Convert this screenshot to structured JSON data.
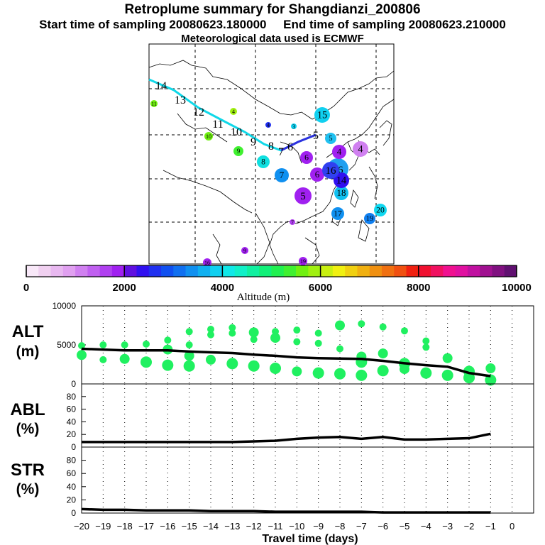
{
  "header": {
    "title": "Retroplume summary for Shangdianzi_200806",
    "sampling": "Start time of sampling 20080623.180000     End time of sampling 20080623.210000",
    "met": "Meteorological data used is ECMWF"
  },
  "colorbar": {
    "ticks": [
      "0",
      "2000",
      "4000",
      "6000",
      "8000",
      "10000"
    ],
    "label": "Altitude (m)",
    "colors": [
      "#f8e8f8",
      "#f0d0f0",
      "#e8b8f0",
      "#e0a0f0",
      "#d080f0",
      "#c060f0",
      "#b040f0",
      "#a020f0",
      "#6010e0",
      "#3010f0",
      "#2030f0",
      "#1050f0",
      "#1070f0",
      "#1090f0",
      "#10b0f0",
      "#10d0f0",
      "#10e8e8",
      "#10f0c8",
      "#10f0a0",
      "#10f078",
      "#20f050",
      "#40f030",
      "#70f010",
      "#a0f010",
      "#c8f010",
      "#f0f010",
      "#f0d010",
      "#f0b010",
      "#f09010",
      "#f07010",
      "#f05010",
      "#f02010",
      "#f01030",
      "#f01060",
      "#f01090",
      "#e010a0",
      "#c010a0",
      "#a01090",
      "#801080",
      "#601070"
    ]
  },
  "map": {
    "path": [
      {
        "label": "14",
        "color": "#10d8e8"
      },
      {
        "label": "13",
        "color": "#10d8e8"
      },
      {
        "label": "12",
        "color": "#10d8e8"
      },
      {
        "label": "11",
        "color": "#10d8e8"
      },
      {
        "label": "10",
        "color": "#10d8e8"
      },
      {
        "label": "9",
        "color": "#10d8e8"
      },
      {
        "label": "8",
        "color": "#10d8e8"
      },
      {
        "label": "7",
        "color": "#3040f0"
      },
      {
        "label": "6",
        "color": "#3040f0"
      },
      {
        "label": "5",
        "color": "#3040f0"
      }
    ],
    "clusters": [
      {
        "label": "15",
        "color": "#10d0f0"
      },
      {
        "label": "16",
        "color": "#20a0f0"
      },
      {
        "label": "17",
        "color": "#1090f0"
      },
      {
        "label": "18",
        "color": "#10c0f0"
      },
      {
        "label": "19",
        "color": "#1080f0"
      },
      {
        "label": "20",
        "color": "#10d8f0"
      },
      {
        "label": "14",
        "color": "#3010f0"
      },
      {
        "label": "4",
        "color": "#d080f0"
      },
      {
        "label": "4",
        "color": "#a020f0"
      },
      {
        "label": "6",
        "color": "#a020f0"
      },
      {
        "label": "6",
        "color": "#a020f0"
      },
      {
        "label": "7",
        "color": "#1090f0"
      },
      {
        "label": "5",
        "color": "#a020f0"
      },
      {
        "label": "8",
        "color": "#10e0e0"
      },
      {
        "label": "9",
        "color": "#40f030"
      },
      {
        "label": "10",
        "color": "#70f010"
      },
      {
        "label": "11",
        "color": "#70f010"
      },
      {
        "label": "4",
        "color": "#a0f010"
      },
      {
        "label": "4",
        "color": "#2030f0"
      },
      {
        "label": "3",
        "color": "#10d0f0"
      },
      {
        "label": "5",
        "color": "#20c0f0"
      },
      {
        "label": "7",
        "color": "#b040f0"
      },
      {
        "label": "9",
        "color": "#a020f0"
      },
      {
        "label": "16",
        "color": "#a020f0"
      },
      {
        "label": "19",
        "color": "#a020f0"
      },
      {
        "label": "16",
        "color": "#3040f0"
      }
    ]
  },
  "panels": {
    "alt": {
      "line1": "ALT",
      "line2": "(m)"
    },
    "abl": {
      "line1": "ABL",
      "line2": "(%)"
    },
    "str": {
      "line1": "STR",
      "line2": "(%)"
    }
  },
  "xaxis": {
    "label": "Travel time (days)"
  },
  "chart_data": [
    {
      "type": "line",
      "title": "ALT (m)",
      "ylim": [
        0,
        10000
      ],
      "yticks": [
        "10000",
        "5000",
        "0"
      ],
      "x": [
        -20,
        -19,
        -18,
        -17,
        -16,
        -15,
        -14,
        -13,
        -12,
        -11,
        -10,
        -9,
        -8,
        -7,
        -6,
        -5,
        -4,
        -3,
        -2,
        -1
      ],
      "series": [
        {
          "name": "mean altitude",
          "values": [
            4500,
            4400,
            4300,
            4300,
            4300,
            4150,
            4050,
            3950,
            3750,
            3600,
            3400,
            3300,
            3250,
            3200,
            2950,
            2650,
            2400,
            2200,
            1400,
            1000
          ]
        }
      ],
      "scatter_green": [
        {
          "x": -20,
          "y": 4900
        },
        {
          "x": -20,
          "y": 3700
        },
        {
          "x": -19,
          "y": 5000
        },
        {
          "x": -19,
          "y": 3100
        },
        {
          "x": -18,
          "y": 5000
        },
        {
          "x": -18,
          "y": 3200
        },
        {
          "x": -17,
          "y": 5100
        },
        {
          "x": -17,
          "y": 2800
        },
        {
          "x": -16,
          "y": 5600
        },
        {
          "x": -16,
          "y": 4400
        },
        {
          "x": -16,
          "y": 2400
        },
        {
          "x": -15,
          "y": 6700
        },
        {
          "x": -15,
          "y": 5000
        },
        {
          "x": -15,
          "y": 3600
        },
        {
          "x": -15,
          "y": 2300
        },
        {
          "x": -14,
          "y": 7000
        },
        {
          "x": -14,
          "y": 6300
        },
        {
          "x": -14,
          "y": 3100
        },
        {
          "x": -13,
          "y": 7200
        },
        {
          "x": -13,
          "y": 6500
        },
        {
          "x": -13,
          "y": 2600
        },
        {
          "x": -12,
          "y": 6600
        },
        {
          "x": -12,
          "y": 5700
        },
        {
          "x": -12,
          "y": 2300
        },
        {
          "x": -11,
          "y": 6700
        },
        {
          "x": -11,
          "y": 5900
        },
        {
          "x": -11,
          "y": 2000
        },
        {
          "x": -10,
          "y": 6900
        },
        {
          "x": -10,
          "y": 5400
        },
        {
          "x": -10,
          "y": 1600
        },
        {
          "x": -9,
          "y": 6500
        },
        {
          "x": -9,
          "y": 5200
        },
        {
          "x": -9,
          "y": 1400
        },
        {
          "x": -8,
          "y": 7500
        },
        {
          "x": -8,
          "y": 4500
        },
        {
          "x": -8,
          "y": 1300
        },
        {
          "x": -7,
          "y": 7700
        },
        {
          "x": -7,
          "y": 3500
        },
        {
          "x": -7,
          "y": 2800
        },
        {
          "x": -7,
          "y": 1100
        },
        {
          "x": -6,
          "y": 7300
        },
        {
          "x": -6,
          "y": 3900
        },
        {
          "x": -6,
          "y": 1700
        },
        {
          "x": -5,
          "y": 6800
        },
        {
          "x": -5,
          "y": 2600
        },
        {
          "x": -5,
          "y": 1900
        },
        {
          "x": -4,
          "y": 5500
        },
        {
          "x": -4,
          "y": 4700
        },
        {
          "x": -4,
          "y": 1400
        },
        {
          "x": -3,
          "y": 3300
        },
        {
          "x": -3,
          "y": 1100
        },
        {
          "x": -2,
          "y": 1600
        },
        {
          "x": -2,
          "y": 800
        },
        {
          "x": -1,
          "y": 2000
        },
        {
          "x": -1,
          "y": 500
        }
      ]
    },
    {
      "type": "line",
      "title": "ABL (%)",
      "ylim": [
        0,
        100
      ],
      "yticks": [
        "80",
        "60",
        "40",
        "20",
        "0"
      ],
      "x": [
        -20,
        -19,
        -18,
        -17,
        -16,
        -15,
        -14,
        -13,
        -12,
        -11,
        -10,
        -9,
        -8,
        -7,
        -6,
        -5,
        -4,
        -3,
        -2,
        -1
      ],
      "series": [
        {
          "name": "ABL fraction",
          "values": [
            8,
            8,
            8,
            8,
            8,
            8,
            8,
            8,
            9,
            10,
            13,
            15,
            16,
            13,
            16,
            12,
            12,
            13,
            14,
            21
          ]
        }
      ]
    },
    {
      "type": "line",
      "title": "STR (%)",
      "ylim": [
        0,
        100
      ],
      "yticks": [
        "80",
        "60",
        "40",
        "20",
        "0"
      ],
      "xlabel": "Travel time (days)",
      "xticks": [
        "-20",
        "-19",
        "-18",
        "-17",
        "-16",
        "-15",
        "-14",
        "-13",
        "-12",
        "-11",
        "-10",
        "-9",
        "-8",
        "-7",
        "-6",
        "-5",
        "-4",
        "-3",
        "-2",
        "-1",
        "0"
      ],
      "x": [
        -20,
        -19,
        -18,
        -17,
        -16,
        -15,
        -14,
        -13,
        -12,
        -11,
        -10,
        -9,
        -8,
        -7,
        -6,
        -5,
        -4,
        -3,
        -2,
        -1
      ],
      "series": [
        {
          "name": "stratospheric fraction",
          "values": [
            6,
            5,
            5,
            4,
            4,
            4,
            3,
            3,
            3,
            2,
            2,
            2,
            2,
            2,
            1,
            1,
            1,
            1,
            1,
            1
          ]
        }
      ]
    }
  ]
}
